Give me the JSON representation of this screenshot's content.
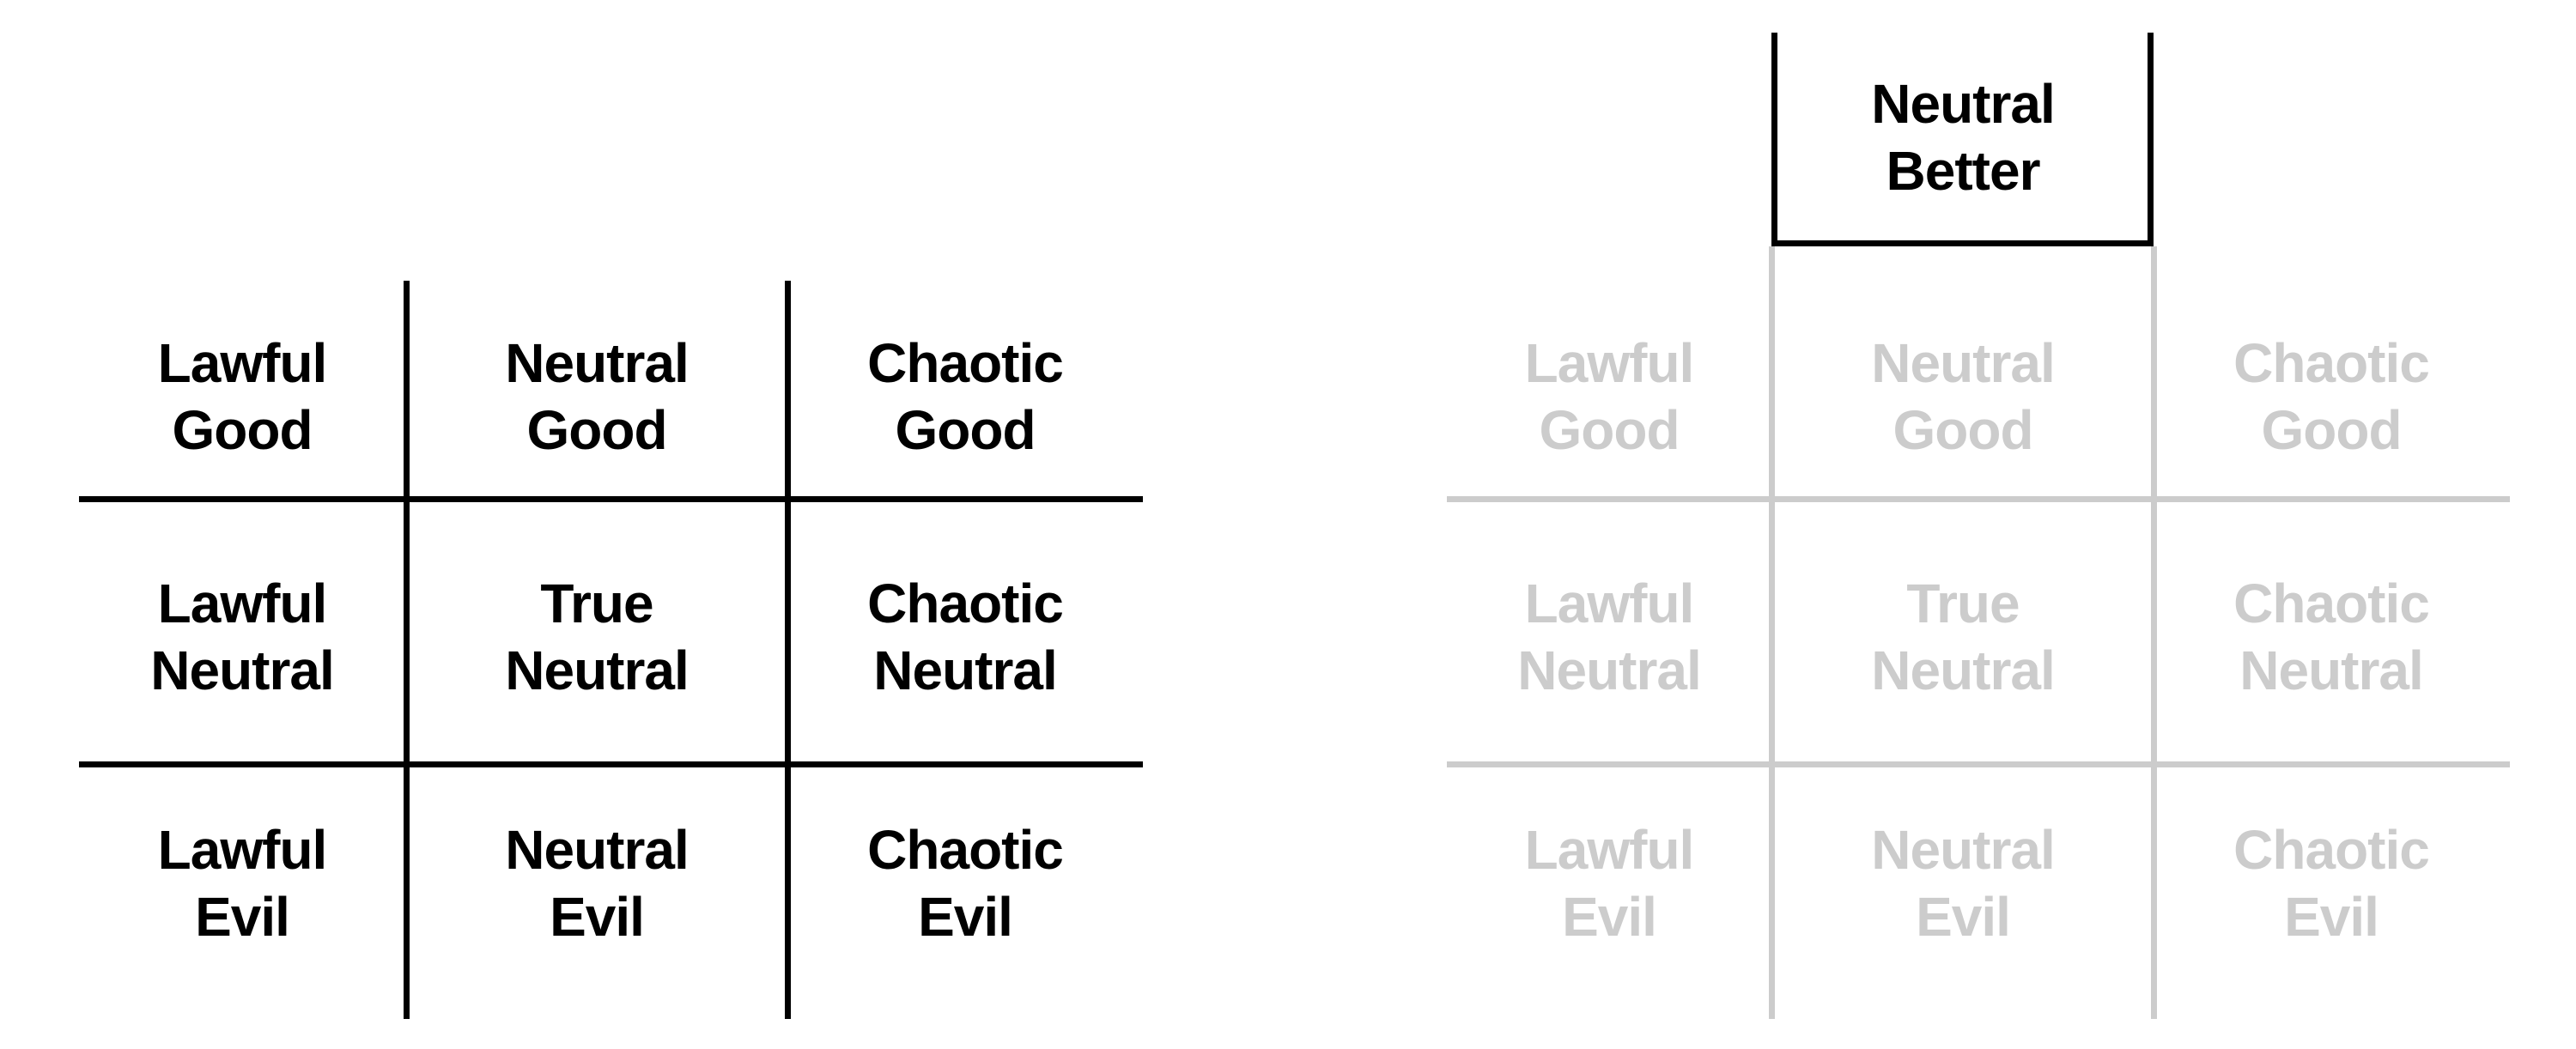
{
  "left_grid": {
    "cells": [
      [
        "Lawful",
        "Good"
      ],
      [
        "Neutral",
        "Good"
      ],
      [
        "Chaotic",
        "Good"
      ],
      [
        "Lawful",
        "Neutral"
      ],
      [
        "True",
        "Neutral"
      ],
      [
        "Chaotic",
        "Neutral"
      ],
      [
        "Lawful",
        "Evil"
      ],
      [
        "Neutral",
        "Evil"
      ],
      [
        "Chaotic",
        "Evil"
      ]
    ]
  },
  "right_grid": {
    "highlight": [
      "Neutral",
      "Better"
    ],
    "cells": [
      [
        "Lawful",
        "Good"
      ],
      [
        "Neutral",
        "Good"
      ],
      [
        "Chaotic",
        "Good"
      ],
      [
        "Lawful",
        "Neutral"
      ],
      [
        "True",
        "Neutral"
      ],
      [
        "Chaotic",
        "Neutral"
      ],
      [
        "Lawful",
        "Evil"
      ],
      [
        "Neutral",
        "Evil"
      ],
      [
        "Chaotic",
        "Evil"
      ]
    ]
  },
  "colors": {
    "primary": "#000000",
    "faded": "#cccccc"
  }
}
